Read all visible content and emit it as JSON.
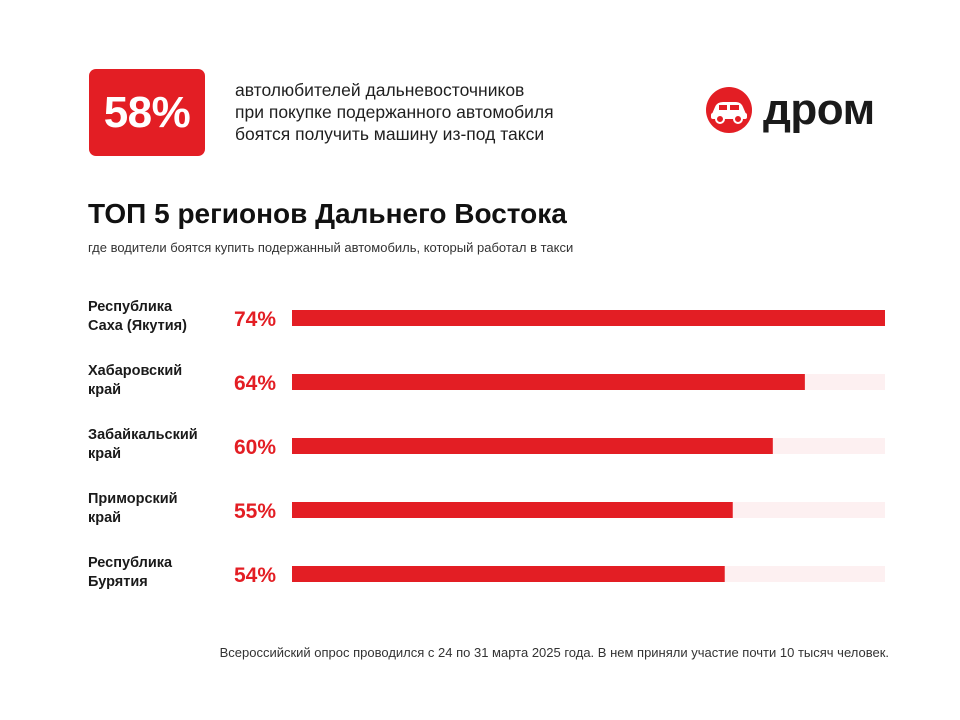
{
  "header": {
    "badge_value": "58%",
    "headline_lines": [
      "автолюбителей дальневосточников",
      "при покупке подержанного автомобиля",
      "боятся получить машину из-под такси"
    ],
    "logo_text": "дром",
    "logo_icon": "drom-logo-icon"
  },
  "colors": {
    "accent": "#e31e24",
    "bar_track": "#fdf0f1",
    "text_dark": "#1a1a1a"
  },
  "chart_data": {
    "type": "bar",
    "orientation": "horizontal",
    "title": "ТОП 5 регионов Дальнего Востока",
    "subtitle": "где водители боятся купить подержанный автомобиль, который работал в такси",
    "categories": [
      [
        "Республика",
        "Саха (Якутия)"
      ],
      [
        "Хабаровский",
        "край"
      ],
      [
        "Забайкальский",
        "край"
      ],
      [
        "Приморский",
        "край"
      ],
      [
        "Республика",
        "Бурятия"
      ]
    ],
    "values": [
      74,
      64,
      60,
      55,
      54
    ],
    "value_labels": [
      "74%",
      "64%",
      "60%",
      "55%",
      "54%"
    ],
    "unit": "%",
    "xlim": [
      0,
      74
    ],
    "grid": false,
    "legend": "none"
  },
  "footnote": "Всероссийский опрос проводился с 24 по 31 марта 2025 года. В нем приняли участие почти 10 тысяч человек."
}
